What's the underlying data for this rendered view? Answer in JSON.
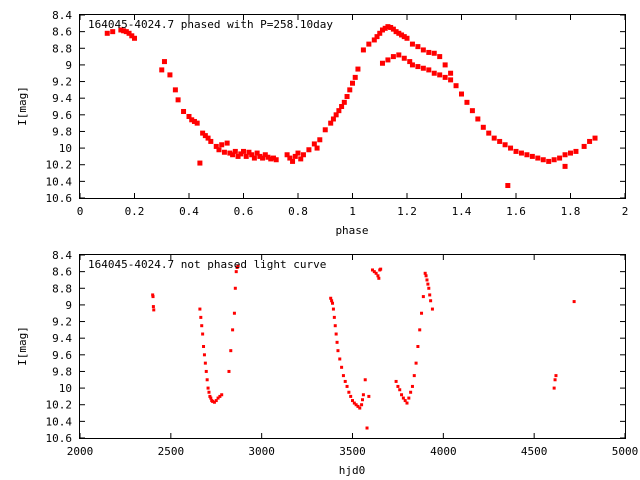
{
  "colors": {
    "points": "#ff0000",
    "frame": "#000000",
    "background": "#ffffff"
  },
  "chart_data": [
    {
      "type": "scatter",
      "title": "164045-4024.7 phased with P=258.10day",
      "xlabel": "phase",
      "ylabel": "I[mag]",
      "xlim": [
        0,
        2
      ],
      "ylim": [
        10.6,
        8.4
      ],
      "y_inverted": true,
      "grid": false,
      "xticks": [
        "0",
        "0.2",
        "0.4",
        "0.6",
        "0.8",
        "1",
        "1.2",
        "1.4",
        "1.6",
        "1.8",
        "2"
      ],
      "yticks": [
        "8.4",
        "8.6",
        "8.8",
        "9",
        "9.2",
        "9.4",
        "9.6",
        "9.8",
        "10",
        "10.2",
        "10.4",
        "10.6"
      ],
      "series": [
        {
          "x": [
            0.1,
            0.12,
            0.15,
            0.16,
            0.17,
            0.18,
            0.19,
            0.2,
            0.3,
            0.31,
            0.33,
            0.35,
            0.36,
            0.38,
            0.4,
            0.41,
            0.42,
            0.43,
            0.44,
            0.45,
            0.46,
            0.47,
            0.48,
            0.5,
            0.51,
            0.52,
            0.53,
            0.54,
            0.55,
            0.56,
            0.57,
            0.58,
            0.59,
            0.6,
            0.61,
            0.62,
            0.63,
            0.64,
            0.65,
            0.66,
            0.67,
            0.68,
            0.69,
            0.7,
            0.71,
            0.72,
            0.76,
            0.77,
            0.78,
            0.79,
            0.8,
            0.81,
            0.82,
            0.84,
            0.86,
            0.87,
            0.88,
            0.9,
            0.92,
            0.93,
            0.94,
            0.95,
            0.96,
            0.97,
            0.98,
            0.99,
            1.0,
            1.01,
            1.02,
            1.04,
            1.06,
            1.08,
            1.09,
            1.1,
            1.11,
            1.12,
            1.13,
            1.14,
            1.15,
            1.16,
            1.17,
            1.18,
            1.19,
            1.2,
            1.11,
            1.13,
            1.15,
            1.17,
            1.19,
            1.21,
            1.22,
            1.24,
            1.26,
            1.28,
            1.3,
            1.32,
            1.34,
            1.36,
            1.22,
            1.24,
            1.26,
            1.28,
            1.3,
            1.32,
            1.34,
            1.36,
            1.38,
            1.4,
            1.42,
            1.44,
            1.46,
            1.48,
            1.5,
            1.52,
            1.54,
            1.56,
            1.58,
            1.6,
            1.62,
            1.64,
            1.66,
            1.68,
            1.7,
            1.72,
            1.74,
            1.76,
            1.78,
            1.8,
            1.82,
            1.85,
            1.87,
            1.89,
            1.57,
            1.78
          ],
          "y": [
            8.62,
            8.6,
            8.58,
            8.59,
            8.6,
            8.62,
            8.65,
            8.68,
            9.06,
            8.96,
            9.12,
            9.3,
            9.42,
            9.56,
            9.62,
            9.66,
            9.68,
            9.7,
            10.18,
            9.82,
            9.85,
            9.88,
            9.92,
            9.98,
            10.02,
            9.96,
            10.05,
            9.94,
            10.06,
            10.08,
            10.04,
            10.1,
            10.07,
            10.04,
            10.1,
            10.05,
            10.08,
            10.12,
            10.06,
            10.1,
            10.12,
            10.08,
            10.11,
            10.13,
            10.12,
            10.14,
            10.08,
            10.12,
            10.16,
            10.1,
            10.06,
            10.13,
            10.08,
            10.02,
            9.95,
            10.0,
            9.9,
            9.78,
            9.7,
            9.65,
            9.6,
            9.55,
            9.5,
            9.45,
            9.38,
            9.3,
            9.22,
            9.15,
            9.05,
            8.82,
            8.75,
            8.7,
            8.66,
            8.62,
            8.58,
            8.56,
            8.54,
            8.55,
            8.57,
            8.6,
            8.62,
            8.64,
            8.66,
            8.68,
            8.98,
            8.94,
            8.9,
            8.88,
            8.92,
            8.96,
            9.0,
            9.02,
            9.04,
            9.06,
            9.1,
            9.12,
            9.15,
            9.18,
            8.75,
            8.78,
            8.82,
            8.85,
            8.86,
            8.9,
            9.0,
            9.1,
            9.25,
            9.35,
            9.45,
            9.55,
            9.65,
            9.75,
            9.82,
            9.88,
            9.92,
            9.96,
            10.0,
            10.04,
            10.06,
            10.08,
            10.1,
            10.12,
            10.14,
            10.16,
            10.14,
            10.12,
            10.08,
            10.06,
            10.04,
            9.98,
            9.92,
            9.88,
            10.45,
            10.22
          ]
        }
      ]
    },
    {
      "type": "scatter",
      "title": "164045-4024.7 not phased light curve",
      "xlabel": "hjd0",
      "ylabel": "I[mag]",
      "xlim": [
        2000,
        5000
      ],
      "ylim": [
        10.6,
        8.4
      ],
      "y_inverted": true,
      "grid": false,
      "xticks": [
        "2000",
        "2500",
        "3000",
        "3500",
        "4000",
        "4500",
        "5000"
      ],
      "yticks": [
        "8.4",
        "8.6",
        "8.8",
        "9",
        "9.2",
        "9.4",
        "9.6",
        "9.8",
        "10",
        "10.2",
        "10.4",
        "10.6"
      ],
      "series": [
        {
          "x": [
            2400,
            2402,
            2404,
            2406,
            2660,
            2665,
            2670,
            2675,
            2680,
            2685,
            2690,
            2695,
            2700,
            2705,
            2710,
            2715,
            2720,
            2725,
            2730,
            2740,
            2750,
            2760,
            2770,
            2780,
            2820,
            2830,
            2840,
            2850,
            2855,
            2860,
            2865,
            2870,
            3380,
            3385,
            3390,
            3395,
            3400,
            3405,
            3410,
            3415,
            3420,
            3430,
            3440,
            3450,
            3460,
            3470,
            3480,
            3490,
            3500,
            3510,
            3520,
            3530,
            3540,
            3550,
            3555,
            3560,
            3570,
            3580,
            3590,
            3610,
            3620,
            3630,
            3640,
            3645,
            3650,
            3655,
            3740,
            3750,
            3760,
            3770,
            3780,
            3790,
            3800,
            3810,
            3820,
            3830,
            3840,
            3850,
            3860,
            3870,
            3880,
            3890,
            3900,
            3905,
            3910,
            3915,
            3920,
            3925,
            3930,
            3940,
            4610,
            4615,
            4620,
            4720
          ],
          "y": [
            8.88,
            8.9,
            9.02,
            9.06,
            9.05,
            9.15,
            9.25,
            9.35,
            9.5,
            9.6,
            9.7,
            9.8,
            9.9,
            10.0,
            10.05,
            10.1,
            10.12,
            10.15,
            10.16,
            10.17,
            10.15,
            10.12,
            10.1,
            10.08,
            9.8,
            9.55,
            9.3,
            9.1,
            8.8,
            8.6,
            8.55,
            8.53,
            8.92,
            8.95,
            8.98,
            9.05,
            9.15,
            9.25,
            9.35,
            9.45,
            9.55,
            9.65,
            9.75,
            9.85,
            9.92,
            9.98,
            10.05,
            10.1,
            10.15,
            10.18,
            10.2,
            10.22,
            10.24,
            10.2,
            10.14,
            10.08,
            9.9,
            10.48,
            10.1,
            8.58,
            8.6,
            8.62,
            8.65,
            8.68,
            8.58,
            8.57,
            9.92,
            9.98,
            10.02,
            10.08,
            10.12,
            10.15,
            10.18,
            10.12,
            10.05,
            9.98,
            9.85,
            9.7,
            9.5,
            9.3,
            9.1,
            8.9,
            8.62,
            8.65,
            8.7,
            8.75,
            8.8,
            8.88,
            8.95,
            9.05,
            10.0,
            9.9,
            9.85,
            8.96
          ]
        }
      ]
    }
  ]
}
